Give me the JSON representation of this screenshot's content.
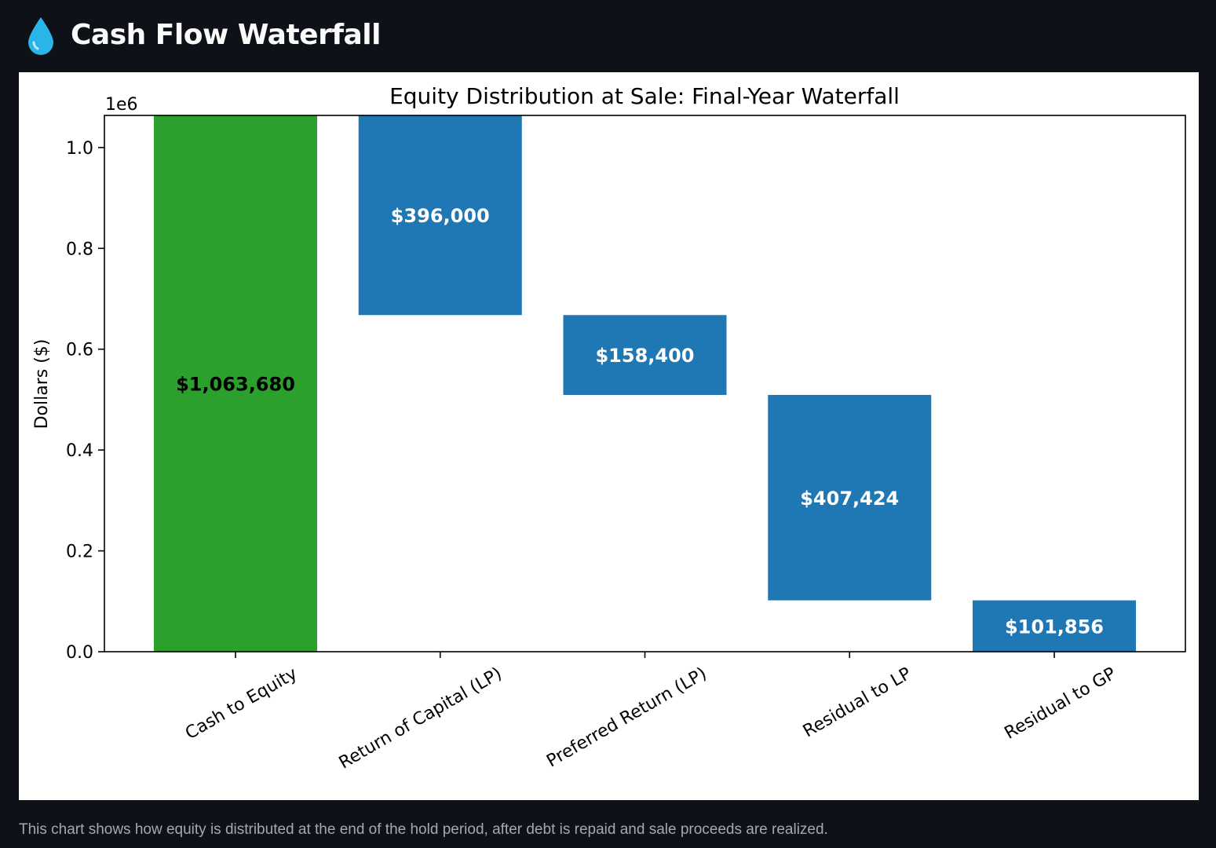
{
  "header": {
    "icon": "water-drop-icon",
    "title": "Cash Flow Waterfall"
  },
  "caption": "This chart shows how equity is distributed at the end of the hold period, after debt is repaid and sale proceeds are realized.",
  "colors": {
    "page_bg": "#0e1117",
    "total_bar": "#2ca02c",
    "step_bar": "#1f77b4",
    "icon": "#29b5e8"
  },
  "chart_data": {
    "type": "bar",
    "subtype": "waterfall",
    "title": "Equity Distribution at Sale: Final-Year Waterfall",
    "ylabel": "Dollars ($)",
    "xlabel": "",
    "y_offset_label": "1e6",
    "ylim": [
      0,
      1063680
    ],
    "yticks": [
      0,
      0.2,
      0.4,
      0.6,
      0.8,
      1.0
    ],
    "ytick_labels": [
      "0.0",
      "0.2",
      "0.4",
      "0.6",
      "0.8",
      "1.0"
    ],
    "grid": false,
    "legend": "none",
    "categories": [
      "Cash to Equity",
      "Return of Capital (LP)",
      "Preferred Return (LP)",
      "Residual to LP",
      "Residual to GP"
    ],
    "values": [
      1063680,
      396000,
      158400,
      407424,
      101856
    ],
    "bases": [
      0,
      667680,
      509280,
      101856,
      0
    ],
    "value_labels": [
      "$1,063,680",
      "$396,000",
      "$158,400",
      "$407,424",
      "$101,856"
    ],
    "bar_kind": [
      "total",
      "step",
      "step",
      "step",
      "step"
    ]
  }
}
